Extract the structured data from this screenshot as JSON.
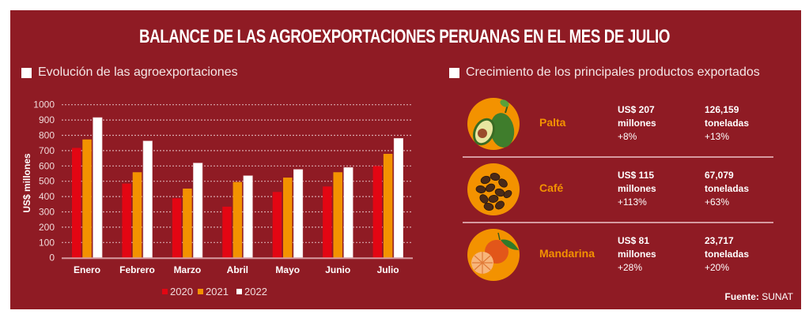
{
  "title": "BALANCE DE LAS AGROEXPORTACIONES PERUANAS EN EL MES DE JULIO",
  "left_section": {
    "heading": "Evolución de las agroexportaciones"
  },
  "right_section": {
    "heading": "Crecimiento de los principales productos exportados"
  },
  "colors": {
    "background": "#8f1b24",
    "y2020": "#e30613",
    "y2021": "#f39200",
    "y2022": "#ffffff",
    "accent": "#f39200"
  },
  "chart_data": {
    "type": "bar",
    "title": "Evolución de las agroexportaciones",
    "xlabel": "",
    "ylabel": "US$ millones",
    "ylim": [
      0,
      1000
    ],
    "yticks": [
      0,
      100,
      200,
      300,
      400,
      500,
      600,
      700,
      800,
      900,
      1000
    ],
    "grid": true,
    "legend_position": "bottom",
    "categories": [
      "Enero",
      "Febrero",
      "Marzo",
      "Abril",
      "Mayo",
      "Junio",
      "Julio"
    ],
    "series": [
      {
        "name": "2020",
        "color": "#e30613",
        "values": [
          718,
          485,
          389,
          334,
          430,
          466,
          600
        ]
      },
      {
        "name": "2021",
        "color": "#f39200",
        "values": [
          773,
          559,
          452,
          495,
          524,
          559,
          679
        ]
      },
      {
        "name": "2022",
        "color": "#ffffff",
        "values": [
          916,
          763,
          619,
          536,
          577,
          590,
          780
        ]
      }
    ]
  },
  "products": [
    {
      "name": "Palta",
      "icon": "avocado-icon",
      "value_line1": "US$ 207",
      "value_line2": "millones",
      "value_growth": "+8%",
      "volume_line1": "126,159",
      "volume_line2": "toneladas",
      "volume_growth": "+13%"
    },
    {
      "name": "Café",
      "icon": "coffee-beans-icon",
      "value_line1": "US$ 115",
      "value_line2": "millones",
      "value_growth": "+113%",
      "volume_line1": "67,079",
      "volume_line2": "toneladas",
      "volume_growth": "+63%"
    },
    {
      "name": "Mandarina",
      "icon": "tangerine-icon",
      "value_line1": "US$ 81",
      "value_line2": "millones",
      "value_growth": "+28%",
      "volume_line1": "23,717",
      "volume_line2": "toneladas",
      "volume_growth": "+20%"
    }
  ],
  "source": {
    "label": "Fuente:",
    "value": "SUNAT"
  }
}
